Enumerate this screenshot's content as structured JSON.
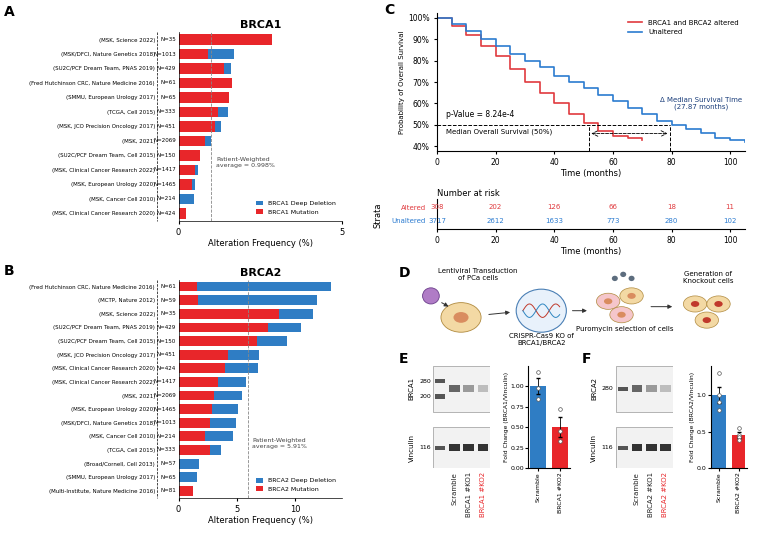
{
  "chart_data": [
    {
      "panel": "A",
      "type": "bar",
      "orientation": "horizontal",
      "stacked": true,
      "title": "BRCA1",
      "xlabel": "Alteration Frequency (%)",
      "xlim": [
        0,
        5
      ],
      "xticks": [
        0,
        5
      ],
      "legend": "lower right",
      "categories": [
        "(MSK, Science 2022)",
        "(MSK/DFCI, Nature Genetics 2018)",
        "(SU2C/PCF Dream Team, PNAS 2019)",
        "(Fred Hutchinson CRC, Nature Medicine 2016)",
        "(SMMU, European Urology 2017)",
        "(TCGA, Cell 2015)",
        "(MSK, JCO Precision Oncology 2017)",
        "(MSK, 2021)",
        "(SU2C/PCF Dream Team, Cell 2015)",
        "(MSK, Clinical Cancer Research 2022)",
        "(MSK, European Urology 2020)",
        "(MSK, Cancer Cell 2010)",
        "(MSK, Clinical Cancer Research 2020)"
      ],
      "n_labels": [
        "N=35",
        "N=1013",
        "N=429",
        "N=61",
        "N=65",
        "N=333",
        "N=451",
        "N=2069",
        "N=150",
        "N=1417",
        "N=1465",
        "N=214",
        "N=424"
      ],
      "series": [
        {
          "name": "BRCA1 Mutation",
          "color": "#e8262a",
          "values": [
            2.86,
            0.9,
            1.4,
            1.64,
            1.54,
            1.2,
            1.1,
            0.8,
            0.67,
            0.5,
            0.4,
            0,
            0.24
          ]
        },
        {
          "name": "BRCA1 Deep Deletion",
          "color": "#2f7dc4",
          "values": [
            0,
            0.8,
            0.2,
            0,
            0,
            0.3,
            0.2,
            0.2,
            0,
            0.1,
            0.1,
            0.47,
            0
          ]
        }
      ],
      "average": {
        "value": 0.998,
        "label": "Patient-Weighted\naverage = 0.998%"
      }
    },
    {
      "panel": "B",
      "type": "bar",
      "orientation": "horizontal",
      "stacked": true,
      "title": "BRCA2",
      "xlabel": "Alteration Frequency (%)",
      "xlim": [
        0,
        14
      ],
      "xticks": [
        0,
        5,
        10
      ],
      "legend": "lower right",
      "categories": [
        "(Fred Hutchinson CRC, Nature Medicine 2016)",
        "(MCTP, Nature 2012)",
        "(MSK, Science 2022)",
        "(SU2C/PCF Dream Team, PNAS 2019)",
        "(SU2C/PCF Dream Team, Cell 2015)",
        "(MSK, JCO Precision Oncology 2017)",
        "(MSK, Clinical Cancer Research 2020)",
        "(MSK, Clinical Cancer Research 2022)",
        "(MSK, 2021)",
        "(MSK, European Urology 2020)",
        "(MSK/DFCI, Nature Genetics 2018)",
        "(MSK, Cancer Cell 2010)",
        "(TCGA, Cell 2015)",
        "(Broad/Cornell, Cell 2013)",
        "(SMMU, European Urology 2017)",
        "(Multi-Institute, Nature Medicine 2016)"
      ],
      "n_labels": [
        "N=61",
        "N=59",
        "N=35",
        "N=429",
        "N=150",
        "N=451",
        "N=424",
        "N=1417",
        "N=2069",
        "N=1465",
        "N=1013",
        "N=214",
        "N=333",
        "N=57",
        "N=65",
        "N=81"
      ],
      "series": [
        {
          "name": "BRCA2 Mutation",
          "color": "#e8262a",
          "values": [
            1.6,
            1.7,
            8.6,
            7.7,
            6.7,
            4.2,
            4.0,
            3.4,
            3.0,
            2.9,
            2.7,
            2.3,
            2.7,
            0,
            0,
            1.23
          ]
        },
        {
          "name": "BRCA2 Deep Deletion",
          "color": "#2f7dc4",
          "values": [
            11.5,
            10.2,
            2.9,
            2.8,
            2.6,
            2.7,
            2.8,
            2.4,
            2.4,
            2.2,
            2.2,
            2.4,
            0.9,
            1.75,
            1.54,
            0
          ]
        }
      ],
      "average": {
        "value": 5.91,
        "label": "Patient-Weighted\naverage = 5.91%"
      }
    },
    {
      "panel": "C",
      "type": "line",
      "xlabel": "Time (months)",
      "ylabel": "Probability of Overall Survival",
      "xlim": [
        0,
        105
      ],
      "xticks": [
        0,
        20,
        40,
        60,
        80,
        100
      ],
      "ylim": [
        38,
        102
      ],
      "yticks": [
        {
          "value": 40,
          "label": "40%"
        },
        {
          "value": 50,
          "label": "50%"
        },
        {
          "value": 60,
          "label": "60%"
        },
        {
          "value": 70,
          "label": "70%"
        },
        {
          "value": 80,
          "label": "80%"
        },
        {
          "value": 90,
          "label": "90%"
        },
        {
          "value": 100,
          "label": "100%"
        }
      ],
      "legend": "upper right",
      "series": [
        {
          "name": "BRCA1 and BRCA2 altered",
          "color": "#e03a3e",
          "x": [
            0,
            5,
            10,
            15,
            20,
            25,
            30,
            35,
            40,
            45,
            50,
            55,
            60,
            65,
            70
          ],
          "values": [
            100,
            96,
            92,
            87,
            82,
            76,
            70,
            65,
            60,
            55,
            51,
            47,
            45,
            44,
            43
          ]
        },
        {
          "name": "Unaltered",
          "color": "#2b7bd0",
          "x": [
            0,
            5,
            10,
            15,
            20,
            25,
            30,
            35,
            40,
            45,
            50,
            55,
            60,
            65,
            70,
            75,
            80,
            85,
            90,
            95,
            100,
            105
          ],
          "values": [
            100,
            97,
            94,
            90,
            87,
            83,
            80,
            77,
            73,
            70,
            67,
            64,
            61,
            58,
            55,
            52,
            50,
            48,
            46,
            44,
            43,
            42
          ]
        }
      ],
      "p_value": "p-Value = 8.24e-4",
      "median": {
        "level": 50,
        "times": [
          51.7,
          79.6
        ],
        "label": "Median Overall Survival (50%)"
      },
      "delta_label": "Δ Median Survival Time\n(27.87 months)",
      "risk_table": {
        "title": "Number at risk",
        "row_title": "Strata",
        "xlabel": "Time (months)",
        "times": [
          0,
          20,
          40,
          60,
          80,
          100
        ],
        "rows": [
          {
            "name": "Altered",
            "color": "#e03a3e",
            "values": [
              308,
              202,
              126,
              66,
              18,
              11
            ]
          },
          {
            "name": "Unaltered",
            "color": "#2b7bd0",
            "values": [
              3717,
              2612,
              1633,
              773,
              280,
              102
            ]
          }
        ]
      }
    },
    {
      "panel": "D",
      "type": "diagram",
      "steps": [
        "Lentiviral Transduction\nof PCa cells",
        "CRISPR-Cas9 KO of\nBRCA1/BRCA2",
        "Puromycin selection of cells",
        "Generation of\nKnockout cells"
      ]
    },
    {
      "panel": "E",
      "type": "bar",
      "blot": {
        "protein": "BRCA1",
        "control": "Vinculin",
        "protein_markers": [
          280,
          200
        ],
        "control_markers": [
          116
        ],
        "lanes": [
          "Scramble",
          "BRCA1 #KO1",
          "BRCA1 #KO2"
        ],
        "colors": [
          "#222222",
          "#222222",
          "#e8262a"
        ]
      },
      "categories": [
        "Scramble",
        "BRCA1 #KO2"
      ],
      "values": [
        1.0,
        0.5
      ],
      "errors": [
        0.1,
        0.12
      ],
      "points": [
        [
          1.17,
          0.98,
          0.85
        ],
        [
          0.72,
          0.45,
          0.33
        ]
      ],
      "colors": [
        "#2f7dc4",
        "#e8262a"
      ],
      "ylabel": "Fold Change (BRCA1/Vinculin)",
      "ylim": [
        0,
        1.25
      ],
      "yticks": [
        {
          "value": 0,
          "label": "0.00"
        },
        {
          "value": 0.25,
          "label": "0.25"
        },
        {
          "value": 0.5,
          "label": "0.50"
        },
        {
          "value": 0.75,
          "label": "0.75"
        },
        {
          "value": 1.0,
          "label": "1.00"
        }
      ]
    },
    {
      "panel": "F",
      "type": "bar",
      "blot": {
        "protein": "BRCA2",
        "control": "Vinculin",
        "protein_markers": [
          280
        ],
        "control_markers": [
          116
        ],
        "lanes": [
          "Scramble",
          "BRCA2 #KO1",
          "BRCA2 #KO2"
        ],
        "colors": [
          "#222222",
          "#222222",
          "#e8262a"
        ]
      },
      "categories": [
        "Scramble",
        "BRCA2 #KO2"
      ],
      "values": [
        1.0,
        0.45
      ],
      "errors": [
        0.11,
        0.04
      ],
      "points": [
        [
          1.3,
          1.0,
          0.9,
          0.8
        ],
        [
          0.55,
          0.45,
          0.42,
          0.38
        ]
      ],
      "colors": [
        "#2f7dc4",
        "#e8262a"
      ],
      "ylabel": "Fold Change (BRCA2/Vinculin)",
      "ylim": [
        0,
        1.4
      ],
      "yticks": [
        {
          "value": 0,
          "label": "0.0"
        },
        {
          "value": 0.5,
          "label": "0.5"
        },
        {
          "value": 1.0,
          "label": "1.0"
        }
      ]
    }
  ]
}
